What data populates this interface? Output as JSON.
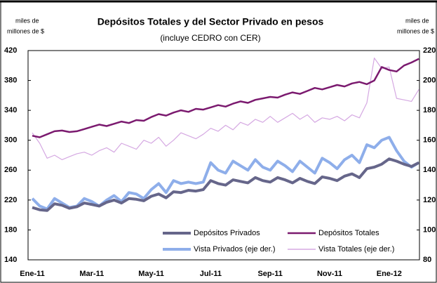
{
  "chart_data": {
    "type": "line",
    "title": "Depósitos Totales y del Sector Privado en pesos",
    "subtitle": "(incluye CEDRO con CER)",
    "ylabel": [
      "miles de",
      "millones de $"
    ],
    "y2label": [
      "miles de",
      "millones de $"
    ],
    "categories": [
      "Ene-11",
      null,
      null,
      null,
      null,
      null,
      null,
      null,
      "Mar-11",
      null,
      null,
      null,
      null,
      null,
      null,
      null,
      "May-11",
      null,
      null,
      null,
      null,
      null,
      null,
      null,
      "Jul-11",
      null,
      null,
      null,
      null,
      null,
      null,
      null,
      "Sep-11",
      null,
      null,
      null,
      null,
      null,
      null,
      null,
      "Nov-11",
      null,
      null,
      null,
      null,
      null,
      null,
      null,
      "Ene-12",
      null,
      null,
      null,
      null
    ],
    "ylim": [
      140,
      420
    ],
    "yticks": [
      140,
      180,
      220,
      260,
      300,
      340,
      380,
      420
    ],
    "y2lim": [
      80,
      220
    ],
    "y2ticks": [
      80,
      100,
      120,
      140,
      160,
      180,
      200,
      220
    ],
    "grid": false,
    "legend": "lower right",
    "series": [
      {
        "name": "Depósitos Privados",
        "color": "#66668a",
        "width": 4,
        "values": [
          210,
          207,
          206,
          215,
          213,
          209,
          211,
          216,
          214,
          212,
          217,
          220,
          216,
          222,
          221,
          219,
          225,
          228,
          223,
          231,
          230,
          233,
          232,
          234,
          246,
          242,
          240,
          247,
          245,
          243,
          250,
          246,
          244,
          250,
          247,
          243,
          249,
          245,
          242,
          251,
          249,
          246,
          252,
          255,
          250,
          262,
          264,
          268,
          275,
          272,
          268,
          265,
          270
        ]
      },
      {
        "name": "Depósitos Totales",
        "color": "#7b1a6f",
        "width": 2.5,
        "values": [
          306,
          304,
          308,
          312,
          313,
          311,
          312,
          315,
          318,
          321,
          319,
          322,
          325,
          323,
          327,
          326,
          331,
          335,
          333,
          337,
          340,
          338,
          342,
          341,
          344,
          347,
          345,
          349,
          352,
          350,
          354,
          356,
          358,
          357,
          361,
          364,
          362,
          366,
          370,
          368,
          371,
          374,
          372,
          376,
          378,
          375,
          380,
          398,
          394,
          392,
          400,
          404,
          409
        ]
      },
      {
        "name": "Vista Privados (eje der.)",
        "color": "#8eaeea",
        "width": 4,
        "axis": "y2",
        "values": [
          121,
          116,
          114,
          121,
          118,
          115,
          116,
          121,
          119,
          116,
          120,
          123,
          119,
          125,
          124,
          121,
          127,
          131,
          125,
          133,
          131,
          132,
          131,
          132,
          145,
          140,
          138,
          146,
          143,
          140,
          147,
          142,
          140,
          146,
          143,
          139,
          146,
          142,
          138,
          148,
          145,
          141,
          147,
          150,
          145,
          157,
          155,
          160,
          162,
          153,
          146,
          142,
          145
        ]
      },
      {
        "name": "Vista Totales (eje der.)",
        "color": "#d5a8e2",
        "width": 1.2,
        "axis": "y2",
        "values": [
          165,
          158,
          148,
          150,
          147,
          149,
          151,
          152,
          150,
          153,
          155,
          152,
          158,
          156,
          154,
          160,
          158,
          162,
          156,
          160,
          165,
          163,
          161,
          164,
          168,
          166,
          170,
          167,
          172,
          170,
          174,
          172,
          176,
          172,
          175,
          178,
          174,
          177,
          172,
          175,
          174,
          176,
          173,
          177,
          175,
          185,
          215,
          208,
          209,
          188,
          187,
          186,
          194
        ]
      }
    ]
  }
}
